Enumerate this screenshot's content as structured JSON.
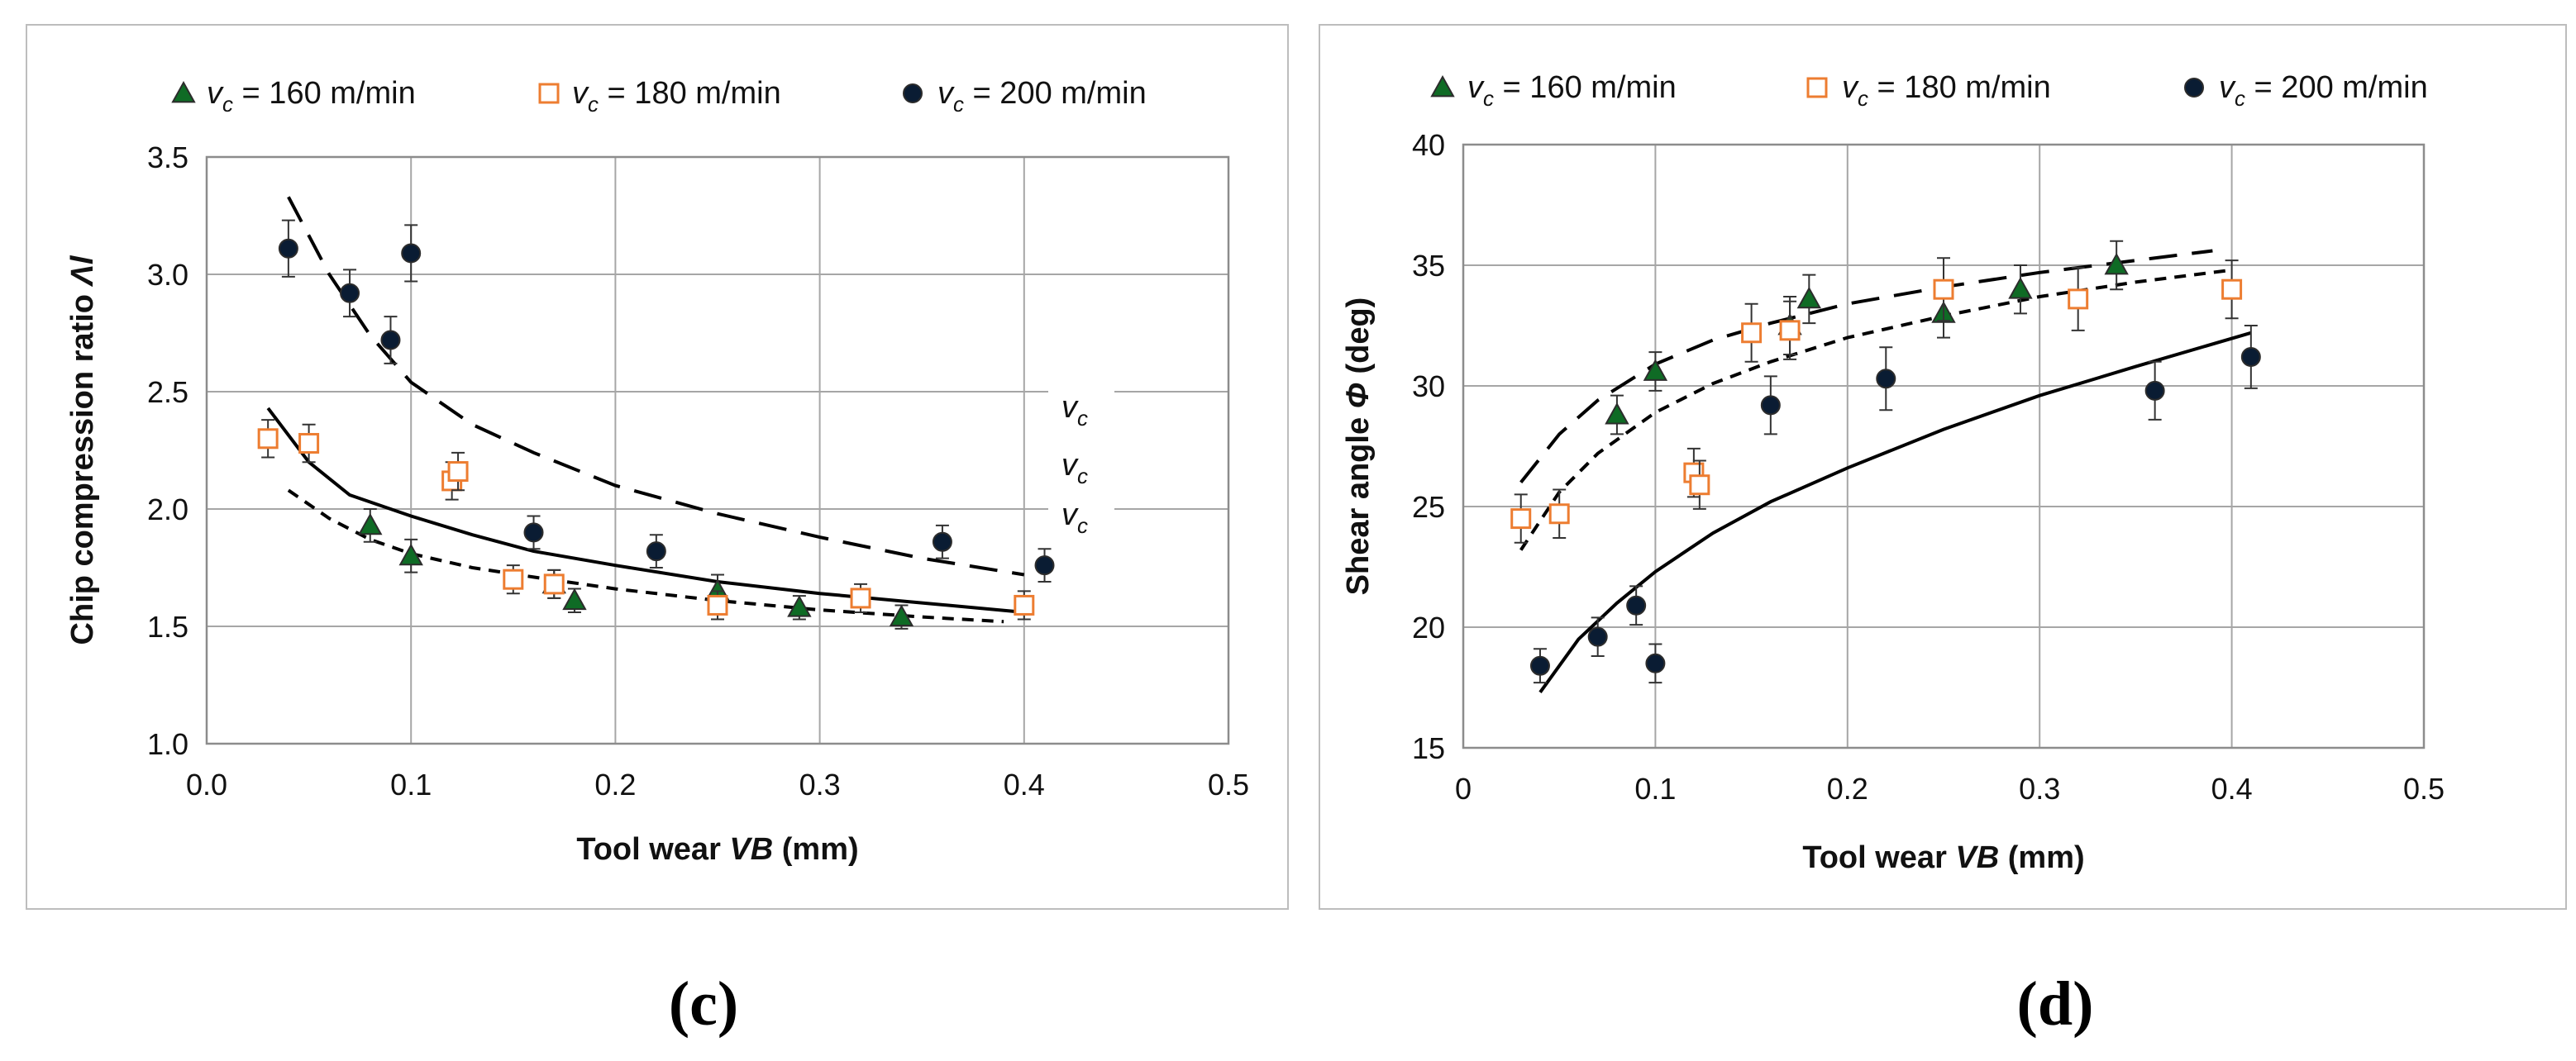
{
  "chart_data": [
    {
      "type": "scatter",
      "panel_label": "(c)",
      "title": "",
      "xlabel": "Tool wear VB (mm)",
      "xlabel_parts": {
        "pre": "Tool wear ",
        "var": "VB",
        "post": " (mm)"
      },
      "ylabel": "Chip compression ratio Λl",
      "ylabel_parts": {
        "pre": "Chip compression ratio ",
        "var": "Λl"
      },
      "xlim": [
        0,
        0.5
      ],
      "ylim": [
        1.0,
        3.5
      ],
      "xticks": [
        0,
        0.1,
        0.2,
        0.3,
        0.4,
        0.5
      ],
      "yticks": [
        1.0,
        1.5,
        2.0,
        2.5,
        3.0,
        3.5
      ],
      "xtick_labels": [
        "0.0",
        "0.1",
        "0.2",
        "0.3",
        "0.4",
        "0.5"
      ],
      "ytick_labels": [
        "1.0",
        "1.5",
        "2.0",
        "2.5",
        "3.0",
        "3.5"
      ],
      "grid": true,
      "legend_position": "top",
      "side_labels": [
        "v",
        "v",
        "v"
      ],
      "side_label_sub": "c",
      "series": [
        {
          "name": "vc = 160 m/min",
          "legend_rest": " = 160 m/min",
          "marker": "triangle",
          "fill": "#0f6b25",
          "stroke": "#2c2c2c",
          "x": [
            0.08,
            0.1,
            0.17,
            0.18,
            0.25,
            0.29,
            0.34
          ],
          "y": [
            1.93,
            1.8,
            1.68,
            1.61,
            1.65,
            1.58,
            1.54
          ],
          "err": [
            0.07,
            0.07,
            0.06,
            0.05,
            0.07,
            0.05,
            0.05
          ]
        },
        {
          "name": "vc = 180 m/min",
          "legend_rest": " = 180 m/min",
          "marker": "square",
          "fill": "#ffffff",
          "stroke": "#ed7d31",
          "x": [
            0.03,
            0.05,
            0.12,
            0.123,
            0.15,
            0.17,
            0.25,
            0.32,
            0.4
          ],
          "y": [
            2.3,
            2.28,
            2.12,
            2.16,
            1.7,
            1.68,
            1.59,
            1.62,
            1.59
          ],
          "err": [
            0.08,
            0.08,
            0.08,
            0.08,
            0.06,
            0.06,
            0.06,
            0.06,
            0.06
          ]
        },
        {
          "name": "vc = 200 m/min",
          "legend_rest": " = 200 m/min",
          "marker": "circle",
          "fill": "#0a1c33",
          "stroke": "#2c2c2c",
          "x": [
            0.04,
            0.07,
            0.09,
            0.1,
            0.16,
            0.22,
            0.36,
            0.41
          ],
          "y": [
            3.11,
            2.92,
            2.72,
            3.09,
            1.9,
            1.82,
            1.86,
            1.76
          ],
          "err": [
            0.12,
            0.1,
            0.1,
            0.12,
            0.07,
            0.07,
            0.07,
            0.07
          ]
        }
      ],
      "trendlines": [
        {
          "series": "vc = 200 m/min",
          "style": "long-dash",
          "x": [
            0.04,
            0.06,
            0.08,
            0.1,
            0.13,
            0.16,
            0.2,
            0.25,
            0.3,
            0.35,
            0.4
          ],
          "y": [
            3.33,
            3.0,
            2.74,
            2.54,
            2.36,
            2.24,
            2.1,
            1.98,
            1.88,
            1.79,
            1.72
          ]
        },
        {
          "series": "vc = 180 m/min",
          "style": "solid",
          "x": [
            0.03,
            0.05,
            0.07,
            0.1,
            0.13,
            0.16,
            0.2,
            0.25,
            0.3,
            0.35,
            0.4
          ],
          "y": [
            2.43,
            2.2,
            2.06,
            1.97,
            1.89,
            1.82,
            1.76,
            1.69,
            1.64,
            1.6,
            1.56
          ]
        },
        {
          "series": "vc = 160 m/min",
          "style": "short-dash",
          "x": [
            0.04,
            0.06,
            0.08,
            0.1,
            0.13,
            0.16,
            0.2,
            0.25,
            0.3,
            0.35,
            0.39
          ],
          "y": [
            2.08,
            1.96,
            1.87,
            1.81,
            1.75,
            1.71,
            1.66,
            1.61,
            1.57,
            1.54,
            1.52
          ]
        }
      ]
    },
    {
      "type": "scatter",
      "panel_label": "(d)",
      "title": "",
      "xlabel": "Tool wear VB (mm)",
      "xlabel_parts": {
        "pre": "Tool wear ",
        "var": "VB",
        "post": " (mm)"
      },
      "ylabel": "Shear angle Φ (deg)",
      "ylabel_parts": {
        "pre": "Shear angle ",
        "var": "Φ",
        "post": " (deg)"
      },
      "xlim": [
        0,
        0.5
      ],
      "ylim": [
        15,
        40
      ],
      "xticks": [
        0,
        0.1,
        0.2,
        0.3,
        0.4,
        0.5
      ],
      "yticks": [
        15,
        20,
        25,
        30,
        35,
        40
      ],
      "xtick_labels": [
        "0",
        "0.1",
        "0.2",
        "0.3",
        "0.4",
        "0.5"
      ],
      "ytick_labels": [
        "15",
        "20",
        "25",
        "30",
        "35",
        "40"
      ],
      "grid": true,
      "legend_position": "top",
      "series": [
        {
          "name": "vc = 160 m/min",
          "legend_rest": " = 160 m/min",
          "marker": "triangle",
          "fill": "#0f6b25",
          "stroke": "#2c2c2c",
          "x": [
            0.08,
            0.1,
            0.17,
            0.18,
            0.25,
            0.29,
            0.34
          ],
          "y": [
            28.8,
            30.6,
            32.5,
            33.6,
            33.0,
            34.0,
            35.0
          ],
          "err": [
            0.8,
            0.8,
            1.2,
            1.0,
            1.0,
            1.0,
            1.0
          ]
        },
        {
          "name": "vc = 180 m/min",
          "legend_rest": " = 180 m/min",
          "marker": "square",
          "fill": "#ffffff",
          "stroke": "#ed7d31",
          "x": [
            0.03,
            0.05,
            0.12,
            0.123,
            0.15,
            0.17,
            0.25,
            0.32,
            0.4
          ],
          "y": [
            24.5,
            24.7,
            26.4,
            25.9,
            32.2,
            32.3,
            34.0,
            33.6,
            34.0
          ],
          "err": [
            1.0,
            1.0,
            1.0,
            1.0,
            1.2,
            1.2,
            1.3,
            1.3,
            1.2
          ]
        },
        {
          "name": "vc = 200 m/min",
          "legend_rest": " = 200 m/min",
          "marker": "circle",
          "fill": "#0a1c33",
          "stroke": "#2c2c2c",
          "x": [
            0.04,
            0.07,
            0.09,
            0.1,
            0.16,
            0.22,
            0.36,
            0.41
          ],
          "y": [
            18.4,
            19.6,
            20.9,
            18.5,
            29.2,
            30.3,
            29.8,
            31.2
          ],
          "err": [
            0.7,
            0.8,
            0.8,
            0.8,
            1.2,
            1.3,
            1.2,
            1.3
          ]
        }
      ],
      "trendlines": [
        {
          "series": "vc = 160 m/min",
          "style": "long-dash",
          "x": [
            0.03,
            0.05,
            0.07,
            0.1,
            0.13,
            0.16,
            0.2,
            0.25,
            0.3,
            0.35,
            0.39
          ],
          "y": [
            26.0,
            28.0,
            29.4,
            30.9,
            31.9,
            32.6,
            33.4,
            34.1,
            34.7,
            35.2,
            35.6
          ]
        },
        {
          "series": "vc = 180 m/min",
          "style": "short-dash",
          "x": [
            0.03,
            0.05,
            0.07,
            0.1,
            0.13,
            0.16,
            0.2,
            0.25,
            0.3,
            0.35,
            0.4
          ],
          "y": [
            23.2,
            25.6,
            27.2,
            28.9,
            30.1,
            31.0,
            32.0,
            32.9,
            33.7,
            34.3,
            34.8
          ]
        },
        {
          "series": "vc = 200 m/min",
          "style": "solid",
          "x": [
            0.04,
            0.06,
            0.08,
            0.1,
            0.13,
            0.16,
            0.2,
            0.25,
            0.3,
            0.35,
            0.41
          ],
          "y": [
            17.3,
            19.5,
            21.0,
            22.3,
            23.9,
            25.2,
            26.6,
            28.2,
            29.6,
            30.8,
            32.2
          ]
        }
      ]
    }
  ]
}
